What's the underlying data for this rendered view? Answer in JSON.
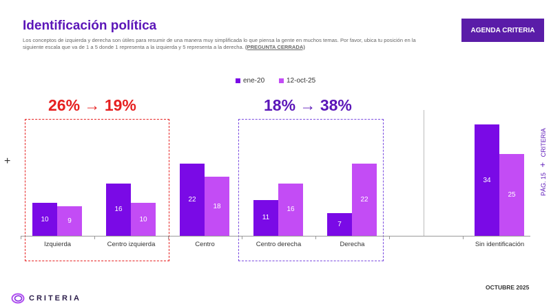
{
  "header": {
    "title": "Identificación política",
    "subtitle": "Los conceptos de izquierda y derecha son útiles para resumir de una manera muy simplificada lo que piensa la gente en muchos temas. Por favor, ubica tu posición en la siguiente escala que va de 1 a 5 donde 1 representa a la izquierda y 5 representa a la derecha.",
    "subtitle_tag": "(PREGUNTA CERRADA)",
    "button": "AGENDA CRITERIA"
  },
  "annotations": {
    "left": "26% → 19%",
    "right": "18% → 38%",
    "left_color": "#e62020",
    "right_color": "#5b16b8"
  },
  "side": {
    "page": "PÁG. 15",
    "plus": "+",
    "brand": "CRITERIA"
  },
  "footer": {
    "date": "OCTUBRE 2025",
    "logo": "CRITERIA",
    "plus": "+"
  },
  "chart_data": {
    "type": "bar",
    "categories": [
      "Izquierda",
      "Centro izquierda",
      "Centro",
      "Centro derecha",
      "Derecha",
      "",
      "Sin identificación"
    ],
    "series": [
      {
        "name": "ene-20",
        "color": "#7a0ae6",
        "values": [
          10,
          16,
          22,
          11,
          7,
          null,
          34
        ]
      },
      {
        "name": "12-oct-25",
        "color": "#c34cf5",
        "values": [
          9,
          10,
          18,
          16,
          22,
          null,
          25
        ]
      }
    ]
  }
}
